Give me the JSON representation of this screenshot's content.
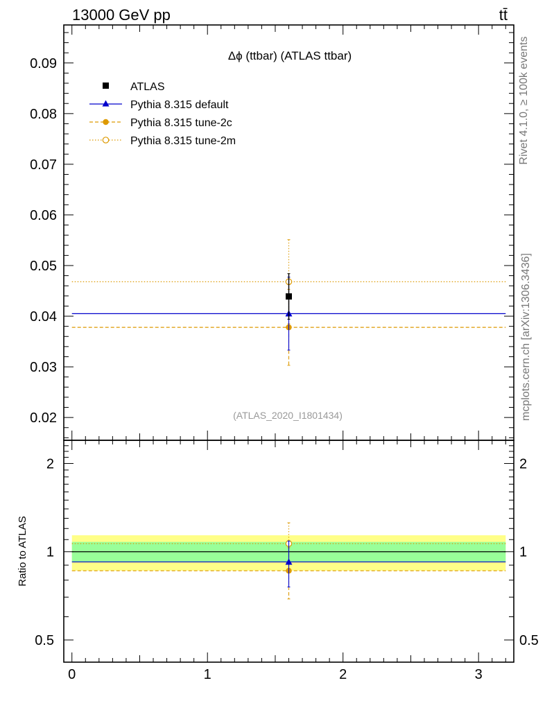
{
  "header": {
    "energy": "13000 GeV pp",
    "process": "tt̄"
  },
  "side_text": {
    "rivet": "Rivet 4.1.0, ≥ 100k events",
    "source": "mcplots.cern.ch [arXiv:1306.3436]"
  },
  "chart_data": {
    "type": "scatter",
    "title": "Δϕ (ttbar) (ATLAS ttbar)",
    "watermark": "(ATLAS_2020_I1801434)",
    "xlabel": "",
    "ylabel": "",
    "xlim": [
      -0.06,
      3.26
    ],
    "ylim": [
      0.0155,
      0.0975
    ],
    "x_ticks": [
      0,
      1,
      2,
      3
    ],
    "y_ticks": [
      0.02,
      0.03,
      0.04,
      0.05,
      0.06,
      0.07,
      0.08,
      0.09
    ],
    "y_tick_labels": [
      "0.02",
      "0.03",
      "0.04",
      "0.05",
      "0.06",
      "0.07",
      "0.08",
      "0.09"
    ],
    "x_tick_labels": [
      "0",
      "1",
      "2",
      "3"
    ],
    "bin": [
      0,
      3.2
    ],
    "x_center": 1.6,
    "series": [
      {
        "name": "ATLAS",
        "y": 0.0439,
        "err_lo": 0.0045,
        "err_hi": 0.0045,
        "color": "#000000",
        "marker": "square",
        "line": "none"
      },
      {
        "name": "Pythia 8.315 default",
        "y": 0.0405,
        "err_lo": 0.0072,
        "err_hi": 0.0072,
        "color": "#0000cc",
        "marker": "triangle",
        "line": "solid"
      },
      {
        "name": "Pythia 8.315 tune-2c",
        "y": 0.0378,
        "err_lo": 0.0075,
        "err_hi": 0.0075,
        "color": "#dd9900",
        "marker": "circle",
        "line": "dashed"
      },
      {
        "name": "Pythia 8.315 tune-2m",
        "y": 0.0468,
        "err_lo": 0.0083,
        "err_hi": 0.0083,
        "color": "#dd9900",
        "marker": "open-circle",
        "line": "dotted"
      }
    ],
    "ratio": {
      "ylabel": "Ratio to ATLAS",
      "ylim": [
        0.42,
        2.4
      ],
      "scale": "log",
      "y_ticks": [
        0.5,
        1,
        2
      ],
      "y_tick_labels": [
        "0.5",
        "1",
        "2"
      ],
      "band_stat": [
        0.92,
        1.08
      ],
      "band_total": [
        0.862,
        1.138
      ],
      "band_stat_color": "#99ff99",
      "band_total_color": "#ffff88",
      "series": [
        {
          "name": "Pythia 8.315 default",
          "y": 0.923,
          "err_lo": 0.165,
          "err_hi": 0.165
        },
        {
          "name": "Pythia 8.315 tune-2c",
          "y": 0.861,
          "err_lo": 0.171,
          "err_hi": 0.171
        },
        {
          "name": "Pythia 8.315 tune-2m",
          "y": 1.066,
          "err_lo": 0.189,
          "err_hi": 0.189
        }
      ]
    }
  }
}
